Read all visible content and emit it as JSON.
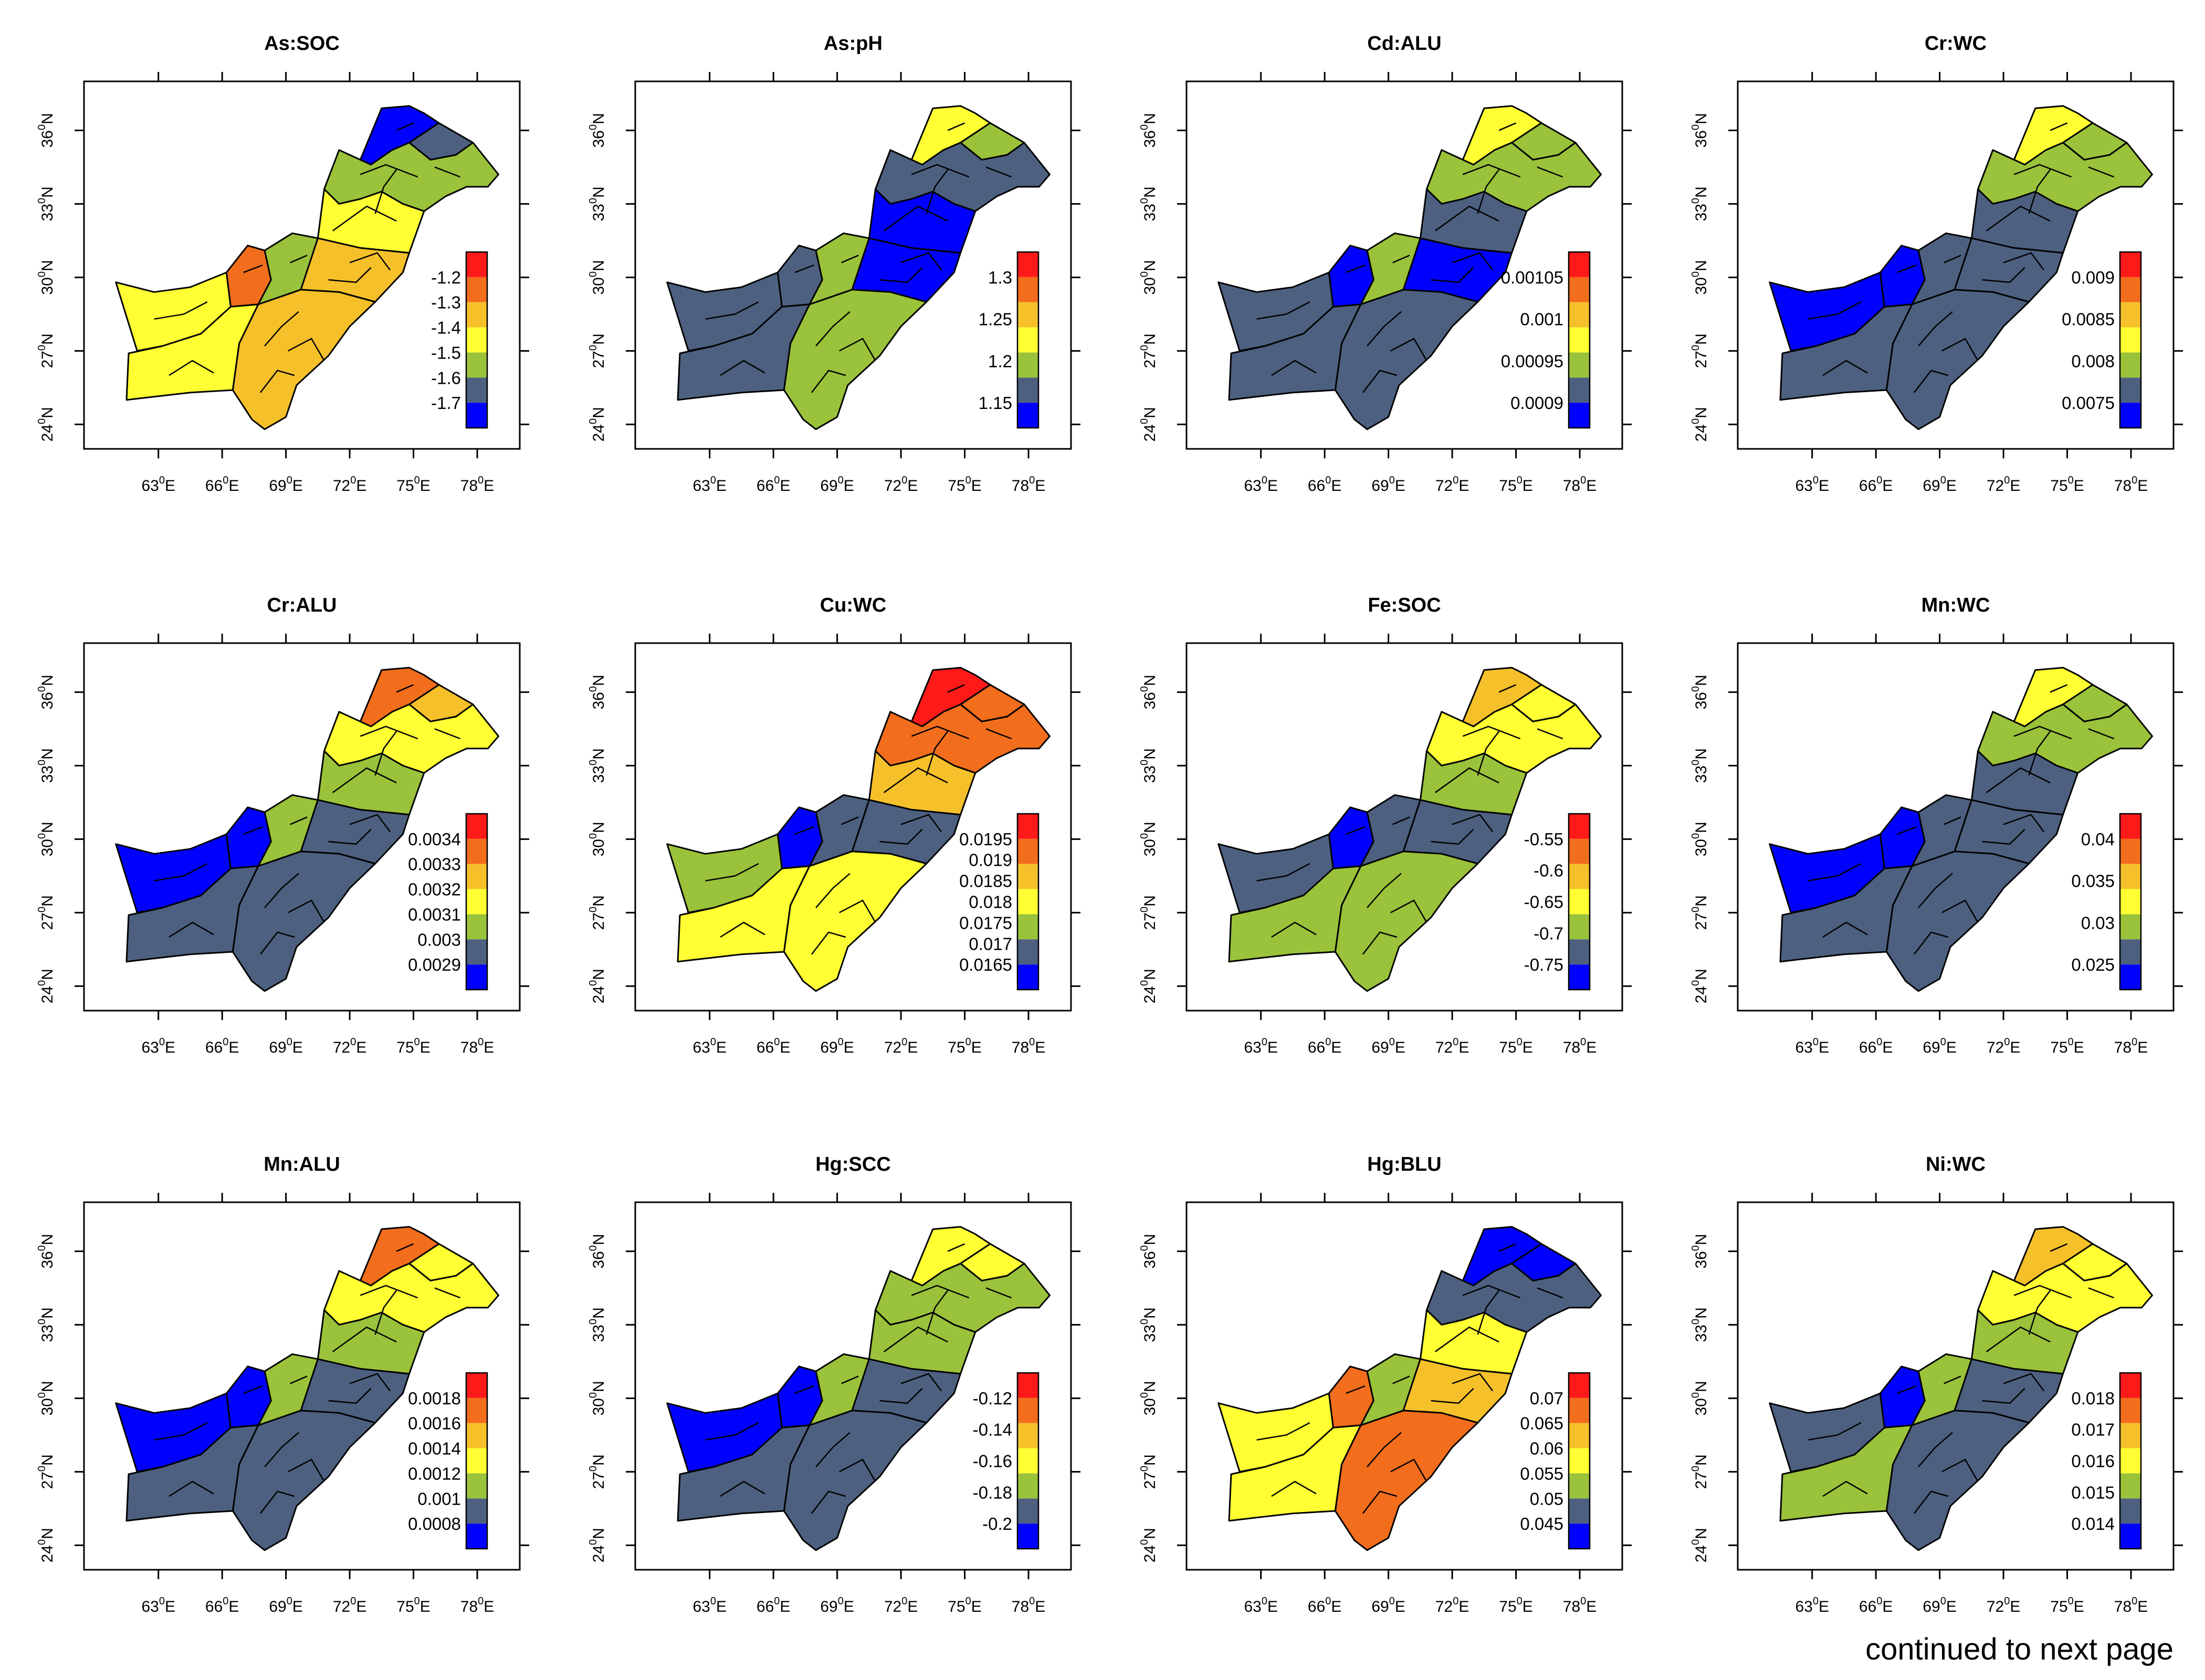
{
  "figure": {
    "footer_note": "continued to next page",
    "x_ticks": [
      "63",
      "66",
      "69",
      "72",
      "75",
      "78"
    ],
    "x_unit": "E",
    "y_ticks": [
      "24",
      "27",
      "30",
      "33",
      "36"
    ],
    "y_unit": "N",
    "degree_mark": "0",
    "palette": [
      "#0000ff",
      "#4d6080",
      "#9ac23a",
      "#ffff33",
      "#f5c02a",
      "#f26d1c",
      "#ff1a1a"
    ]
  },
  "panels": [
    {
      "title": "As:SOC",
      "legend_labels": [
        "-1.2",
        "-1.3",
        "-1.4",
        "-1.5",
        "-1.6",
        "-1.7"
      ],
      "region_classes": [
        0,
        1,
        2,
        3,
        4,
        5,
        3,
        3,
        4,
        2
      ]
    },
    {
      "title": "As:pH",
      "legend_labels": [
        "1.3",
        "1.25",
        "1.2",
        "1.15"
      ],
      "region_classes": [
        3,
        2,
        1,
        0,
        0,
        1,
        1,
        1,
        2,
        2
      ]
    },
    {
      "title": "Cd:ALU",
      "legend_labels": [
        "0.00105",
        "0.001",
        "0.00095",
        "0.0009"
      ],
      "region_classes": [
        3,
        2,
        2,
        1,
        0,
        0,
        1,
        1,
        1,
        2
      ]
    },
    {
      "title": "Cr:WC",
      "legend_labels": [
        "0.009",
        "0.0085",
        "0.008",
        "0.0075"
      ],
      "region_classes": [
        3,
        2,
        2,
        1,
        1,
        0,
        0,
        1,
        1,
        1
      ]
    },
    {
      "title": "Cr:ALU",
      "legend_labels": [
        "0.0034",
        "0.0033",
        "0.0032",
        "0.0031",
        "0.003",
        "0.0029"
      ],
      "region_classes": [
        5,
        4,
        3,
        2,
        1,
        0,
        0,
        1,
        1,
        2
      ]
    },
    {
      "title": "Cu:WC",
      "legend_labels": [
        "0.0195",
        "0.019",
        "0.0185",
        "0.018",
        "0.0175",
        "0.017",
        "0.0165"
      ],
      "region_classes": [
        6,
        5,
        5,
        4,
        1,
        0,
        2,
        3,
        3,
        1
      ]
    },
    {
      "title": "Fe:SOC",
      "legend_labels": [
        "-0.55",
        "-0.6",
        "-0.65",
        "-0.7",
        "-0.75"
      ],
      "region_classes": [
        4,
        3,
        3,
        2,
        1,
        0,
        1,
        2,
        2,
        1
      ]
    },
    {
      "title": "Mn:WC",
      "legend_labels": [
        "0.04",
        "0.035",
        "0.03",
        "0.025"
      ],
      "region_classes": [
        3,
        2,
        2,
        1,
        1,
        0,
        0,
        1,
        1,
        1
      ]
    },
    {
      "title": "Mn:ALU",
      "legend_labels": [
        "0.0018",
        "0.0016",
        "0.0014",
        "0.0012",
        "0.001",
        "0.0008"
      ],
      "region_classes": [
        5,
        3,
        3,
        2,
        1,
        0,
        0,
        1,
        1,
        2
      ]
    },
    {
      "title": "Hg:SCC",
      "legend_labels": [
        "-0.12",
        "-0.14",
        "-0.16",
        "-0.18",
        "-0.2"
      ],
      "region_classes": [
        3,
        3,
        2,
        2,
        1,
        0,
        0,
        1,
        1,
        2
      ]
    },
    {
      "title": "Hg:BLU",
      "legend_labels": [
        "0.07",
        "0.065",
        "0.06",
        "0.055",
        "0.05",
        "0.045"
      ],
      "region_classes": [
        0,
        0,
        1,
        3,
        4,
        5,
        3,
        3,
        5,
        2
      ]
    },
    {
      "title": "Ni:WC",
      "legend_labels": [
        "0.018",
        "0.017",
        "0.016",
        "0.015",
        "0.014"
      ],
      "region_classes": [
        4,
        3,
        3,
        2,
        1,
        0,
        1,
        2,
        1,
        2
      ]
    }
  ]
}
